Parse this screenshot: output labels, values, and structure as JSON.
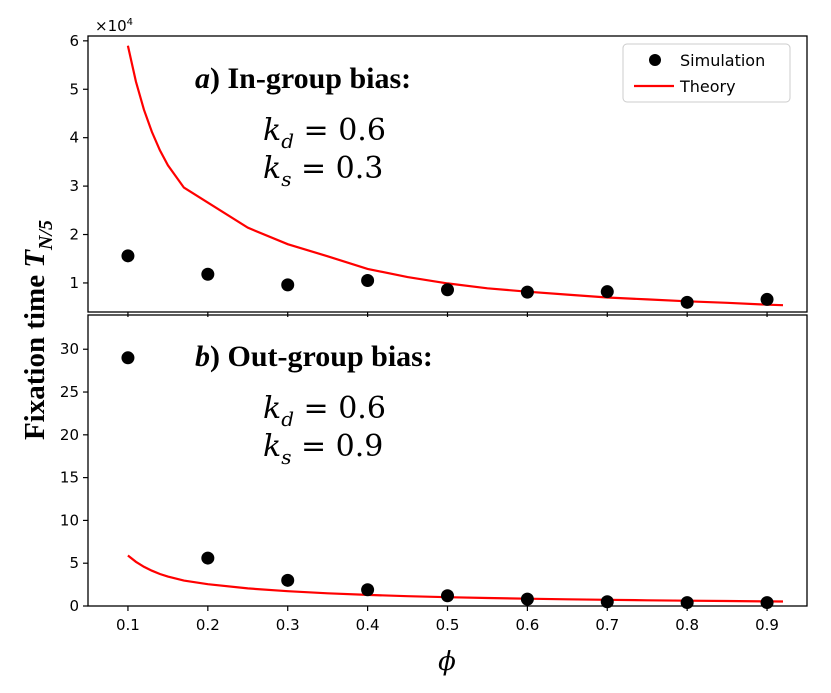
{
  "figure": {
    "ylabel": "Fixation time",
    "ylabel_symbol": "T",
    "ylabel_subscript": "N/5",
    "xlabel": "ϕ",
    "x_ticks": [
      "0.1",
      "0.2",
      "0.3",
      "0.4",
      "0.5",
      "0.6",
      "0.7",
      "0.8",
      "0.9"
    ]
  },
  "legend": {
    "placement": "top-right",
    "entries": [
      {
        "label": "Simulation",
        "marker": "circle",
        "color": "#000000"
      },
      {
        "label": "Theory",
        "marker": "line",
        "color": "#ff0000"
      }
    ]
  },
  "chart_data": [
    {
      "type": "scatter+line",
      "panel_label": "a",
      "title": "In-group bias:",
      "params": [
        {
          "symbol": "k",
          "sub": "d",
          "value": "0.6"
        },
        {
          "symbol": "k",
          "sub": "s",
          "value": "0.3"
        }
      ],
      "y_multiplier": "×10",
      "y_multiplier_exp": "4",
      "xlim": [
        0.05,
        0.95
      ],
      "ylim": [
        0.4,
        6.1
      ],
      "y_ticks": [
        "1",
        "2",
        "3",
        "4",
        "5",
        "6"
      ],
      "series": [
        {
          "name": "Simulation",
          "kind": "scatter",
          "color": "#000000",
          "x": [
            0.1,
            0.2,
            0.3,
            0.4,
            0.5,
            0.6,
            0.7,
            0.8,
            0.9
          ],
          "y": [
            1.56,
            1.18,
            0.96,
            1.05,
            0.86,
            0.81,
            0.82,
            0.6,
            0.66
          ]
        },
        {
          "name": "Theory",
          "kind": "line",
          "color": "#ff0000",
          "x": [
            0.1,
            0.11,
            0.12,
            0.13,
            0.14,
            0.15,
            0.17,
            0.2,
            0.25,
            0.3,
            0.35,
            0.4,
            0.45,
            0.5,
            0.55,
            0.6,
            0.65,
            0.7,
            0.75,
            0.8,
            0.85,
            0.9,
            0.92
          ],
          "y": [
            5.9,
            5.16,
            4.58,
            4.12,
            3.74,
            3.43,
            2.97,
            2.66,
            2.14,
            1.8,
            1.55,
            1.29,
            1.12,
            0.99,
            0.89,
            0.82,
            0.76,
            0.7,
            0.66,
            0.62,
            0.59,
            0.55,
            0.54
          ]
        }
      ]
    },
    {
      "type": "scatter+line",
      "panel_label": "b",
      "title": "Out-group bias:",
      "params": [
        {
          "symbol": "k",
          "sub": "d",
          "value": "0.6"
        },
        {
          "symbol": "k",
          "sub": "s",
          "value": "0.9"
        }
      ],
      "xlim": [
        0.05,
        0.95
      ],
      "ylim": [
        0,
        34
      ],
      "y_ticks": [
        "0",
        "5",
        "10",
        "15",
        "20",
        "25",
        "30"
      ],
      "series": [
        {
          "name": "Simulation",
          "kind": "scatter",
          "color": "#000000",
          "x": [
            0.1,
            0.2,
            0.3,
            0.4,
            0.5,
            0.6,
            0.7,
            0.8,
            0.9
          ],
          "y": [
            29.0,
            5.6,
            3.0,
            1.9,
            1.2,
            0.8,
            0.5,
            0.4,
            0.4
          ]
        },
        {
          "name": "Theory",
          "kind": "line",
          "color": "#ff0000",
          "x": [
            0.1,
            0.11,
            0.12,
            0.13,
            0.14,
            0.15,
            0.17,
            0.2,
            0.25,
            0.3,
            0.35,
            0.4,
            0.45,
            0.5,
            0.55,
            0.6,
            0.65,
            0.7,
            0.75,
            0.8,
            0.85,
            0.9,
            0.92
          ],
          "y": [
            5.9,
            5.16,
            4.58,
            4.12,
            3.74,
            3.43,
            2.97,
            2.55,
            2.06,
            1.73,
            1.48,
            1.3,
            1.15,
            1.03,
            0.93,
            0.85,
            0.78,
            0.72,
            0.67,
            0.62,
            0.58,
            0.54,
            0.53
          ]
        }
      ]
    }
  ]
}
